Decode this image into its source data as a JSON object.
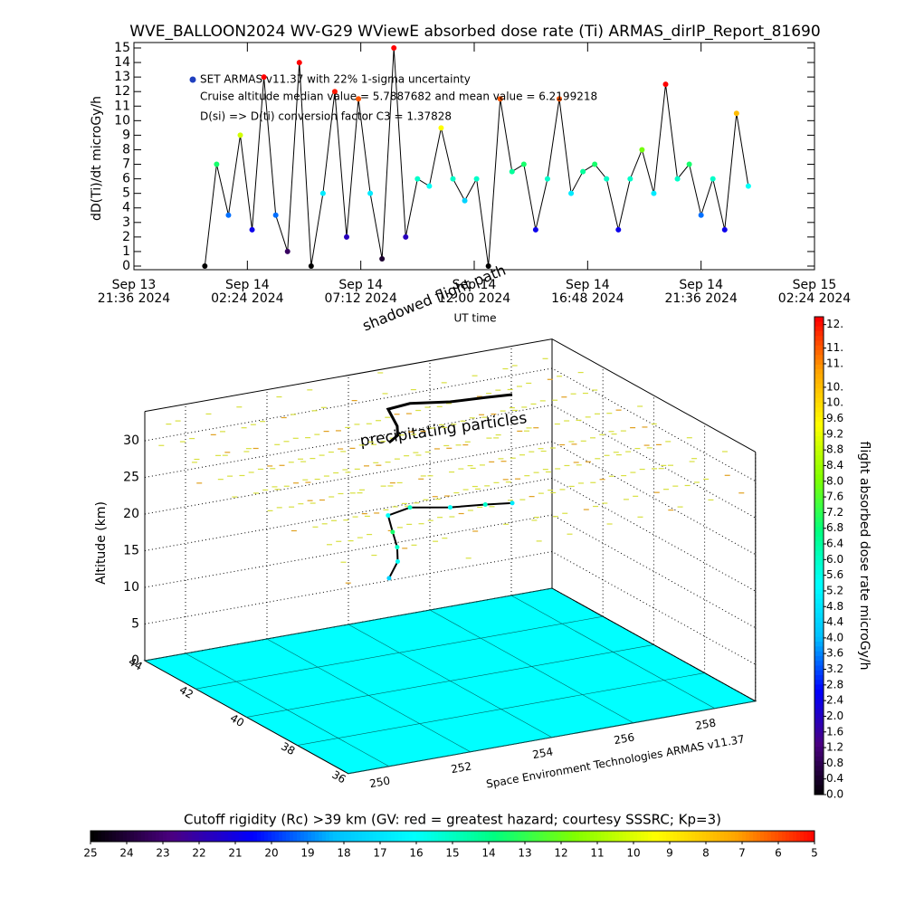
{
  "chart_data": [
    {
      "type": "line",
      "title": "WVE_BALLOON2024 WV-G29 WViewE absorbed dose rate (Ti) ARMAS_dirIP_Report_81690",
      "ylabel": "dD(Ti)/dt microGy/h",
      "xlabel": "UT time",
      "annotations": [
        "Cruise altitude median value = 5.7887682 and mean value = 6.2199218",
        "D(si) => D(ti) conversion factor C3 = 1.37828"
      ],
      "x": [
        "2024-09-14 00:36",
        "2024-09-14 01:06",
        "2024-09-14 01:36",
        "2024-09-14 02:06",
        "2024-09-14 02:36",
        "2024-09-14 03:06",
        "2024-09-14 03:36",
        "2024-09-14 04:06",
        "2024-09-14 04:36",
        "2024-09-14 05:06",
        "2024-09-14 05:36",
        "2024-09-14 06:06",
        "2024-09-14 06:36",
        "2024-09-14 07:06",
        "2024-09-14 07:36",
        "2024-09-14 08:06",
        "2024-09-14 08:36",
        "2024-09-14 09:06",
        "2024-09-14 09:36",
        "2024-09-14 10:06",
        "2024-09-14 10:36",
        "2024-09-14 11:06",
        "2024-09-14 11:36",
        "2024-09-14 12:06",
        "2024-09-14 12:36",
        "2024-09-14 13:06",
        "2024-09-14 13:36",
        "2024-09-14 14:06",
        "2024-09-14 14:36",
        "2024-09-14 15:06",
        "2024-09-14 15:36",
        "2024-09-14 16:06",
        "2024-09-14 16:36",
        "2024-09-14 17:06",
        "2024-09-14 17:36",
        "2024-09-14 18:06",
        "2024-09-14 18:36",
        "2024-09-14 19:06",
        "2024-09-14 19:36",
        "2024-09-14 20:06",
        "2024-09-14 20:36",
        "2024-09-14 21:06",
        "2024-09-14 21:36",
        "2024-09-14 22:06",
        "2024-09-14 22:36",
        "2024-09-14 23:06",
        "2024-09-14 23:36"
      ],
      "series": [
        {
          "name": "SET ARMAS v11.37 with 22% 1-sigma uncertainty",
          "color": "#1f3fbf",
          "values": [
            0,
            7,
            3.5,
            9,
            2.5,
            13,
            3.5,
            1,
            14,
            0,
            5,
            12,
            2,
            11.5,
            5,
            0.5,
            15,
            2,
            6,
            5.5,
            9.5,
            6,
            4.5,
            6,
            0,
            11.5,
            6.5,
            7,
            2.5,
            6,
            11.5,
            5,
            6.5,
            7,
            6,
            2.5,
            6,
            8,
            5,
            12.5,
            6,
            7,
            3.5,
            6,
            2.5,
            10.5,
            5.5
          ]
        }
      ],
      "xlim": [
        "2024-09-13 21:36",
        "2024-09-15 02:24"
      ],
      "xticks": [
        {
          "value": "2024-09-13 21:36",
          "label": [
            "Sep 13",
            "21:36 2024"
          ]
        },
        {
          "value": "2024-09-14 02:24",
          "label": [
            "Sep 14",
            "02:24 2024"
          ]
        },
        {
          "value": "2024-09-14 07:12",
          "label": [
            "Sep 14",
            "07:12 2024"
          ]
        },
        {
          "value": "2024-09-14 12:00",
          "label": [
            "Sep 14",
            "12:00 2024"
          ]
        },
        {
          "value": "2024-09-14 16:48",
          "label": [
            "Sep 14",
            "16:48 2024"
          ]
        },
        {
          "value": "2024-09-14 21:36",
          "label": [
            "Sep 14",
            "21:36 2024"
          ]
        },
        {
          "value": "2024-09-15 02:24",
          "label": [
            "Sep 15",
            "02:24 2024"
          ]
        }
      ],
      "ylim": [
        0,
        15
      ],
      "yticks": [
        0,
        1,
        2,
        3,
        4,
        5,
        6,
        7,
        8,
        9,
        10,
        11,
        12,
        13,
        14,
        15
      ]
    },
    {
      "type": "scatter3d",
      "zlabel": "Altitude (km)",
      "annotations": [
        "precipitating particles",
        "shadowed flight path"
      ],
      "credit": "Space Environment Technologies ARMAS v11.37",
      "xlim": [
        249,
        259
      ],
      "xticks": [
        250,
        252,
        254,
        256,
        258
      ],
      "ylim": [
        36,
        44
      ],
      "yticks": [
        36,
        38,
        40,
        42,
        44
      ],
      "zlim": [
        0,
        34
      ],
      "zticks": [
        0,
        5,
        10,
        15,
        20,
        25,
        30
      ],
      "track": {
        "lon": [
          252.5,
          252.9,
          253.2,
          253.4,
          253.6,
          254.2,
          255,
          255.8,
          256.4
        ],
        "lat": [
          40,
          40.3,
          40.8,
          41.3,
          41.8,
          41.9,
          41.6,
          41.5,
          41.4
        ],
        "alt": [
          15.5,
          16.8,
          17.5,
          18.4,
          19.5,
          19.8,
          19.6,
          19.4,
          19.2
        ],
        "dose": [
          4.5,
          5.5,
          6,
          7,
          5.5,
          6,
          5.5,
          6,
          5
        ]
      },
      "colormap": [
        "#000000",
        "#4b0082",
        "#0000ff",
        "#00bfff",
        "#00ffff",
        "#00ff80",
        "#80ff00",
        "#ffff00",
        "#ffa500",
        "#ff0000"
      ],
      "colorbar": {
        "label": "flight absorbed dose rate microGy/h",
        "lim": [
          0,
          12.2
        ],
        "ticks": [
          {
            "value": 0,
            "label": "0.0"
          },
          0.4,
          0.8,
          1.2,
          1.6,
          {
            "value": 2,
            "label": "2.0"
          },
          2.4,
          2.8,
          3.2,
          3.6,
          {
            "value": 4,
            "label": "4.0"
          },
          4.4,
          4.8,
          5.2,
          5.6,
          {
            "value": 6,
            "label": "6.0"
          },
          6.4,
          6.8,
          7.2,
          7.6,
          {
            "value": 8,
            "label": "8.0"
          },
          8.4,
          8.8,
          9.2,
          9.6,
          {
            "value": 10,
            "label": "10."
          },
          {
            "value": 10.4,
            "label": "10."
          },
          {
            "value": 11,
            "label": "11."
          },
          {
            "value": 11.4,
            "label": "11."
          },
          {
            "value": 12,
            "label": "12."
          }
        ]
      }
    },
    {
      "type": "colorbar",
      "title": "Cutoff rigidity (Rc) >39 km (GV: red = greatest hazard; courtesy SSSRC; Kp=3)",
      "xlim": [
        25,
        5
      ],
      "xticks": [
        25,
        24,
        23,
        22,
        21,
        20,
        19,
        18,
        17,
        16,
        15,
        14,
        13,
        12,
        11,
        10,
        9,
        8,
        7,
        6,
        5
      ]
    }
  ]
}
